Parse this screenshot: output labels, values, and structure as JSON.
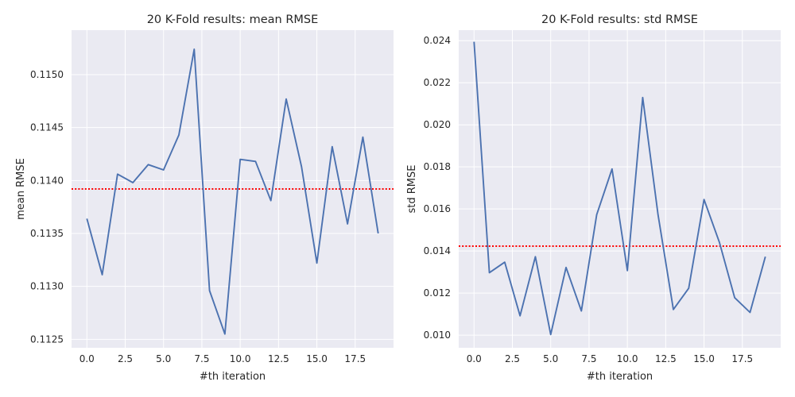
{
  "chart_data": [
    {
      "type": "line",
      "title": "20 K-Fold results: mean RMSE",
      "xlabel": "#th iteration",
      "ylabel": "mean RMSE",
      "xlim": [
        -1,
        20
      ],
      "ylim": [
        0.11242,
        0.11542
      ],
      "x_ticks": [
        0.0,
        2.5,
        5.0,
        7.5,
        10.0,
        12.5,
        15.0,
        17.5
      ],
      "x_tick_labels": [
        "0.0",
        "2.5",
        "5.0",
        "7.5",
        "10.0",
        "12.5",
        "15.0",
        "17.5"
      ],
      "y_ticks": [
        0.1125,
        0.113,
        0.1135,
        0.114,
        0.1145,
        0.115
      ],
      "y_tick_labels": [
        "0.1125",
        "0.1130",
        "0.1135",
        "0.1140",
        "0.1145",
        "0.1150"
      ],
      "grid": true,
      "series": [
        {
          "x": [
            0,
            1,
            2,
            3,
            4,
            5,
            6,
            7,
            8,
            9,
            10,
            11,
            12,
            13,
            14,
            15,
            16,
            17,
            18,
            19
          ],
          "values": [
            0.11364,
            0.11311,
            0.11406,
            0.11398,
            0.11415,
            0.1141,
            0.11443,
            0.11524,
            0.11296,
            0.11255,
            0.1142,
            0.11418,
            0.11381,
            0.11477,
            0.11413,
            0.11322,
            0.11432,
            0.11359,
            0.11441,
            0.1135
          ],
          "color": "#4c72b0"
        }
      ],
      "reference_line": {
        "y": 0.11392,
        "color": "#ff0000",
        "style": "dotted"
      }
    },
    {
      "type": "line",
      "title": "20 K-Fold results: std RMSE",
      "xlabel": "#th iteration",
      "ylabel": "std RMSE",
      "xlim": [
        -1,
        20
      ],
      "ylim": [
        0.0094,
        0.0245
      ],
      "x_ticks": [
        0.0,
        2.5,
        5.0,
        7.5,
        10.0,
        12.5,
        15.0,
        17.5
      ],
      "x_tick_labels": [
        "0.0",
        "2.5",
        "5.0",
        "7.5",
        "10.0",
        "12.5",
        "15.0",
        "17.5"
      ],
      "y_ticks": [
        0.01,
        0.012,
        0.014,
        0.016,
        0.018,
        0.02,
        0.022,
        0.024
      ],
      "y_tick_labels": [
        "0.010",
        "0.012",
        "0.014",
        "0.016",
        "0.018",
        "0.020",
        "0.022",
        "0.024"
      ],
      "grid": true,
      "series": [
        {
          "x": [
            0,
            1,
            2,
            3,
            4,
            5,
            6,
            7,
            8,
            9,
            10,
            11,
            12,
            13,
            14,
            15,
            16,
            17,
            18,
            19
          ],
          "values": [
            0.02395,
            0.01297,
            0.01347,
            0.01092,
            0.01373,
            0.01003,
            0.01322,
            0.01115,
            0.01573,
            0.0179,
            0.01307,
            0.0213,
            0.01573,
            0.01122,
            0.01223,
            0.01645,
            0.01442,
            0.01178,
            0.01108,
            0.01373
          ],
          "color": "#4c72b0"
        }
      ],
      "reference_line": {
        "y": 0.01423,
        "color": "#ff0000",
        "style": "dotted"
      }
    }
  ]
}
